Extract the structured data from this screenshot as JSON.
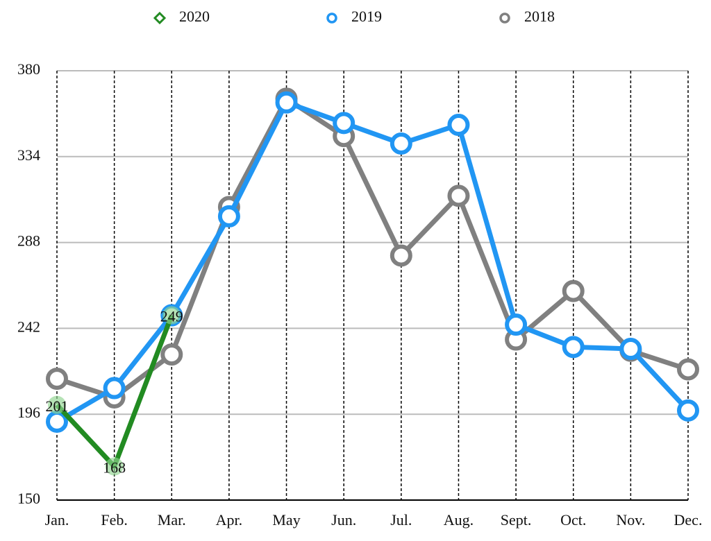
{
  "chart_data": {
    "type": "line",
    "categories": [
      "Jan.",
      "Feb.",
      "Mar.",
      "Apr.",
      "May",
      "Jun.",
      "Jul.",
      "Aug.",
      "Sept.",
      "Oct.",
      "Nov.",
      "Dec."
    ],
    "series": [
      {
        "name": "2020",
        "color": "#228b22",
        "marker_color": "#8fd48f",
        "marker": "diamond",
        "data_labels": true,
        "values": [
          201,
          168,
          249,
          null,
          null,
          null,
          null,
          null,
          null,
          null,
          null,
          null
        ]
      },
      {
        "name": "2019",
        "color": "#2196f3",
        "marker": "circle",
        "values": [
          192,
          210,
          249,
          302,
          363,
          352,
          341,
          351,
          244,
          232,
          231,
          198
        ]
      },
      {
        "name": "2018",
        "color": "#808080",
        "marker": "circle",
        "values": [
          215,
          205,
          228,
          307,
          365,
          345,
          281,
          313,
          236,
          262,
          230,
          220
        ]
      }
    ],
    "ylim": [
      150,
      380
    ],
    "yticks": [
      150,
      196,
      242,
      288,
      334,
      380
    ],
    "grid": true,
    "legend": "top"
  }
}
